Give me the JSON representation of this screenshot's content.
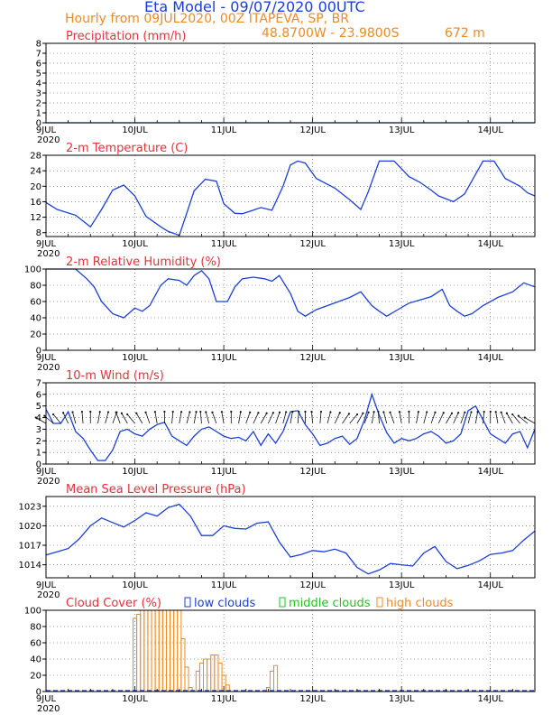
{
  "header": {
    "title": "Eta Model - 09/07/2020 00UTC",
    "subtitle": "Hourly from 09JUL2020, 00Z  ITAPEVA, SP, BR",
    "lonlat": "48.8700W - 23.9800S",
    "elevation": "672  m"
  },
  "colors": {
    "title_blue": "#1a3fd8",
    "label_orange": "#f08a24",
    "panel_red": "#e8303a",
    "line_blue": "#1a3fd8",
    "green": "#22c322",
    "grid": "#555555"
  },
  "x_axis": {
    "hours_total": 132,
    "tick_labels": [
      "9JUL",
      "10JUL",
      "11JUL",
      "12JUL",
      "13JUL",
      "14JUL"
    ],
    "year_label": "2020"
  },
  "chart_data": [
    {
      "type": "line",
      "title": "Precipitation (mm/h)",
      "ylim": [
        0,
        8
      ],
      "yticks": [
        0,
        1,
        2,
        3,
        4,
        5,
        6,
        7,
        8
      ],
      "x": [
        0,
        132
      ],
      "values": [
        0,
        0
      ]
    },
    {
      "type": "line",
      "title": "2-m Temperature (C)",
      "ylim": [
        7,
        28
      ],
      "yticks": [
        8,
        12,
        16,
        20,
        24,
        28
      ],
      "x": [
        0,
        3,
        8,
        12,
        15,
        18,
        21,
        24,
        27,
        31,
        33,
        36,
        38,
        40,
        43,
        46,
        48,
        51,
        53,
        55,
        58,
        61,
        64,
        66,
        68,
        70,
        73,
        78,
        82,
        85,
        87,
        90,
        94,
        98,
        101,
        104,
        106,
        110,
        113,
        118,
        121,
        124,
        128,
        130,
        132
      ],
      "values": [
        15.8,
        14,
        12.5,
        9.5,
        14,
        19,
        20.3,
        17.5,
        12.2,
        9.5,
        8.3,
        7.3,
        13,
        18.8,
        21.8,
        21.3,
        15.5,
        13,
        12.9,
        13.5,
        14.5,
        13.8,
        20,
        25.5,
        26.5,
        26,
        22,
        19.5,
        16.5,
        14,
        18.5,
        26.5,
        26.5,
        22.5,
        21,
        19,
        17.5,
        16,
        18,
        26.5,
        26.5,
        22,
        20,
        18.3,
        17.5
      ]
    },
    {
      "type": "line",
      "title": "2-m Relative Humidity (%)",
      "ylim": [
        0,
        100
      ],
      "yticks": [
        0,
        20,
        40,
        60,
        80,
        100
      ],
      "x": [
        0,
        4,
        8,
        11,
        13,
        15,
        18,
        21,
        24,
        26,
        28,
        31,
        33,
        36,
        38,
        40,
        42,
        44,
        46,
        49,
        51,
        53,
        56,
        59,
        61,
        63,
        66,
        68,
        70,
        73,
        76,
        79,
        82,
        85,
        88,
        90,
        92,
        95,
        98,
        101,
        104,
        107,
        109,
        111,
        113,
        115,
        118,
        122,
        126,
        129,
        132
      ],
      "values": [
        100,
        100,
        100,
        88,
        78,
        60,
        45,
        40,
        52,
        48,
        55,
        80,
        88,
        86,
        80,
        92,
        98,
        88,
        60,
        60,
        78,
        88,
        90,
        88,
        85,
        92,
        70,
        48,
        42,
        50,
        55,
        60,
        65,
        72,
        55,
        48,
        42,
        50,
        58,
        62,
        66,
        75,
        55,
        48,
        42,
        45,
        55,
        65,
        72,
        83,
        78
      ]
    },
    {
      "type": "line",
      "title": "10-m Wind (m/s)",
      "ylim": [
        0,
        7
      ],
      "yticks": [
        0,
        1,
        2,
        3,
        4,
        5,
        6,
        7
      ],
      "x": [
        0,
        2,
        4,
        6,
        8,
        10,
        12,
        14,
        16,
        18,
        20,
        22,
        24,
        26,
        28,
        30,
        32,
        34,
        36,
        38,
        40,
        42,
        44,
        46,
        48,
        50,
        52,
        54,
        56,
        58,
        60,
        62,
        64,
        66,
        68,
        70,
        72,
        74,
        76,
        78,
        80,
        82,
        84,
        86,
        88,
        90,
        92,
        94,
        96,
        98,
        100,
        102,
        104,
        106,
        108,
        110,
        112,
        114,
        116,
        118,
        120,
        122,
        124,
        126,
        128,
        130,
        132
      ],
      "values": [
        4.7,
        3.5,
        3.5,
        4.5,
        2.8,
        2.2,
        1.2,
        0.3,
        0.3,
        1.2,
        2.8,
        3.0,
        2.6,
        2.4,
        3.0,
        3.4,
        3.6,
        2.4,
        2.0,
        1.6,
        2.4,
        3.0,
        3.2,
        2.8,
        2.4,
        2.2,
        2.3,
        2.0,
        2.8,
        1.6,
        2.6,
        1.8,
        2.8,
        4.5,
        4.6,
        3.4,
        2.6,
        1.6,
        1.8,
        2.2,
        2.4,
        1.7,
        2.2,
        3.8,
        6.0,
        4.2,
        2.7,
        1.8,
        2.2,
        2.0,
        2.2,
        2.6,
        2.8,
        2.4,
        1.8,
        2.0,
        2.6,
        4.6,
        5.0,
        3.8,
        2.6,
        2.2,
        1.8,
        2.6,
        2.8,
        1.4,
        3.0
      ],
      "arrows_dir_deg": [
        300,
        310,
        320,
        335,
        345,
        355,
        0,
        10,
        15,
        20,
        340,
        330,
        320,
        330,
        340,
        350,
        0,
        5,
        10,
        15,
        10,
        355,
        345,
        340,
        350,
        0,
        10,
        20,
        25,
        30,
        25,
        20,
        15,
        10,
        5,
        0,
        355,
        5,
        15,
        25,
        35,
        40,
        30,
        20,
        10,
        355,
        345,
        340,
        350,
        0,
        10,
        15,
        20,
        25,
        30,
        25,
        20,
        15,
        10,
        5,
        0,
        350,
        340,
        330,
        320,
        310,
        300
      ]
    },
    {
      "type": "line",
      "title": "Mean Sea Level Pressure (hPa)",
      "ylim": [
        1012,
        1024.5
      ],
      "yticks": [
        1014,
        1017,
        1020,
        1023
      ],
      "x": [
        0,
        3,
        6,
        9,
        12,
        15,
        18,
        21,
        24,
        27,
        30,
        33,
        36,
        39,
        42,
        45,
        48,
        51,
        54,
        57,
        60,
        63,
        66,
        69,
        72,
        75,
        78,
        81,
        84,
        87,
        90,
        93,
        96,
        99,
        102,
        105,
        108,
        111,
        114,
        117,
        120,
        123,
        126,
        129,
        132
      ],
      "values": [
        1015.5,
        1016,
        1016.5,
        1018,
        1020,
        1021.2,
        1020.5,
        1019.8,
        1020.8,
        1022,
        1021.5,
        1022.8,
        1023.3,
        1021.5,
        1018.5,
        1018.5,
        1020,
        1019.6,
        1019.5,
        1020.4,
        1020.6,
        1017.5,
        1015.2,
        1015.6,
        1016.2,
        1016,
        1016.4,
        1015.8,
        1013.6,
        1012.6,
        1013.2,
        1014.2,
        1014,
        1013.8,
        1015.8,
        1016.8,
        1014.5,
        1013.4,
        1013.9,
        1014.6,
        1015.6,
        1015.8,
        1016.2,
        1017.8,
        1019.2
      ]
    },
    {
      "type": "bar",
      "title": "Cloud Cover (%)",
      "ylim": [
        0,
        100
      ],
      "yticks": [
        0,
        20,
        40,
        60,
        80,
        100
      ],
      "legend": [
        "low clouds",
        "middle clouds",
        "high clouds"
      ],
      "series": [
        {
          "name": "high clouds",
          "x": [
            24,
            25,
            26,
            27,
            28,
            29,
            30,
            31,
            32,
            33,
            34,
            35,
            36,
            37,
            38,
            39,
            41,
            42,
            43,
            44,
            45,
            46,
            47,
            48,
            49,
            60,
            61,
            62
          ],
          "values": [
            90,
            95,
            100,
            100,
            100,
            100,
            100,
            100,
            100,
            100,
            100,
            100,
            100,
            65,
            30,
            5,
            25,
            35,
            40,
            40,
            45,
            45,
            35,
            20,
            8,
            5,
            25,
            32
          ]
        },
        {
          "name": "low clouds",
          "x": [
            0,
            132
          ],
          "values": [
            0,
            0
          ]
        }
      ]
    }
  ]
}
